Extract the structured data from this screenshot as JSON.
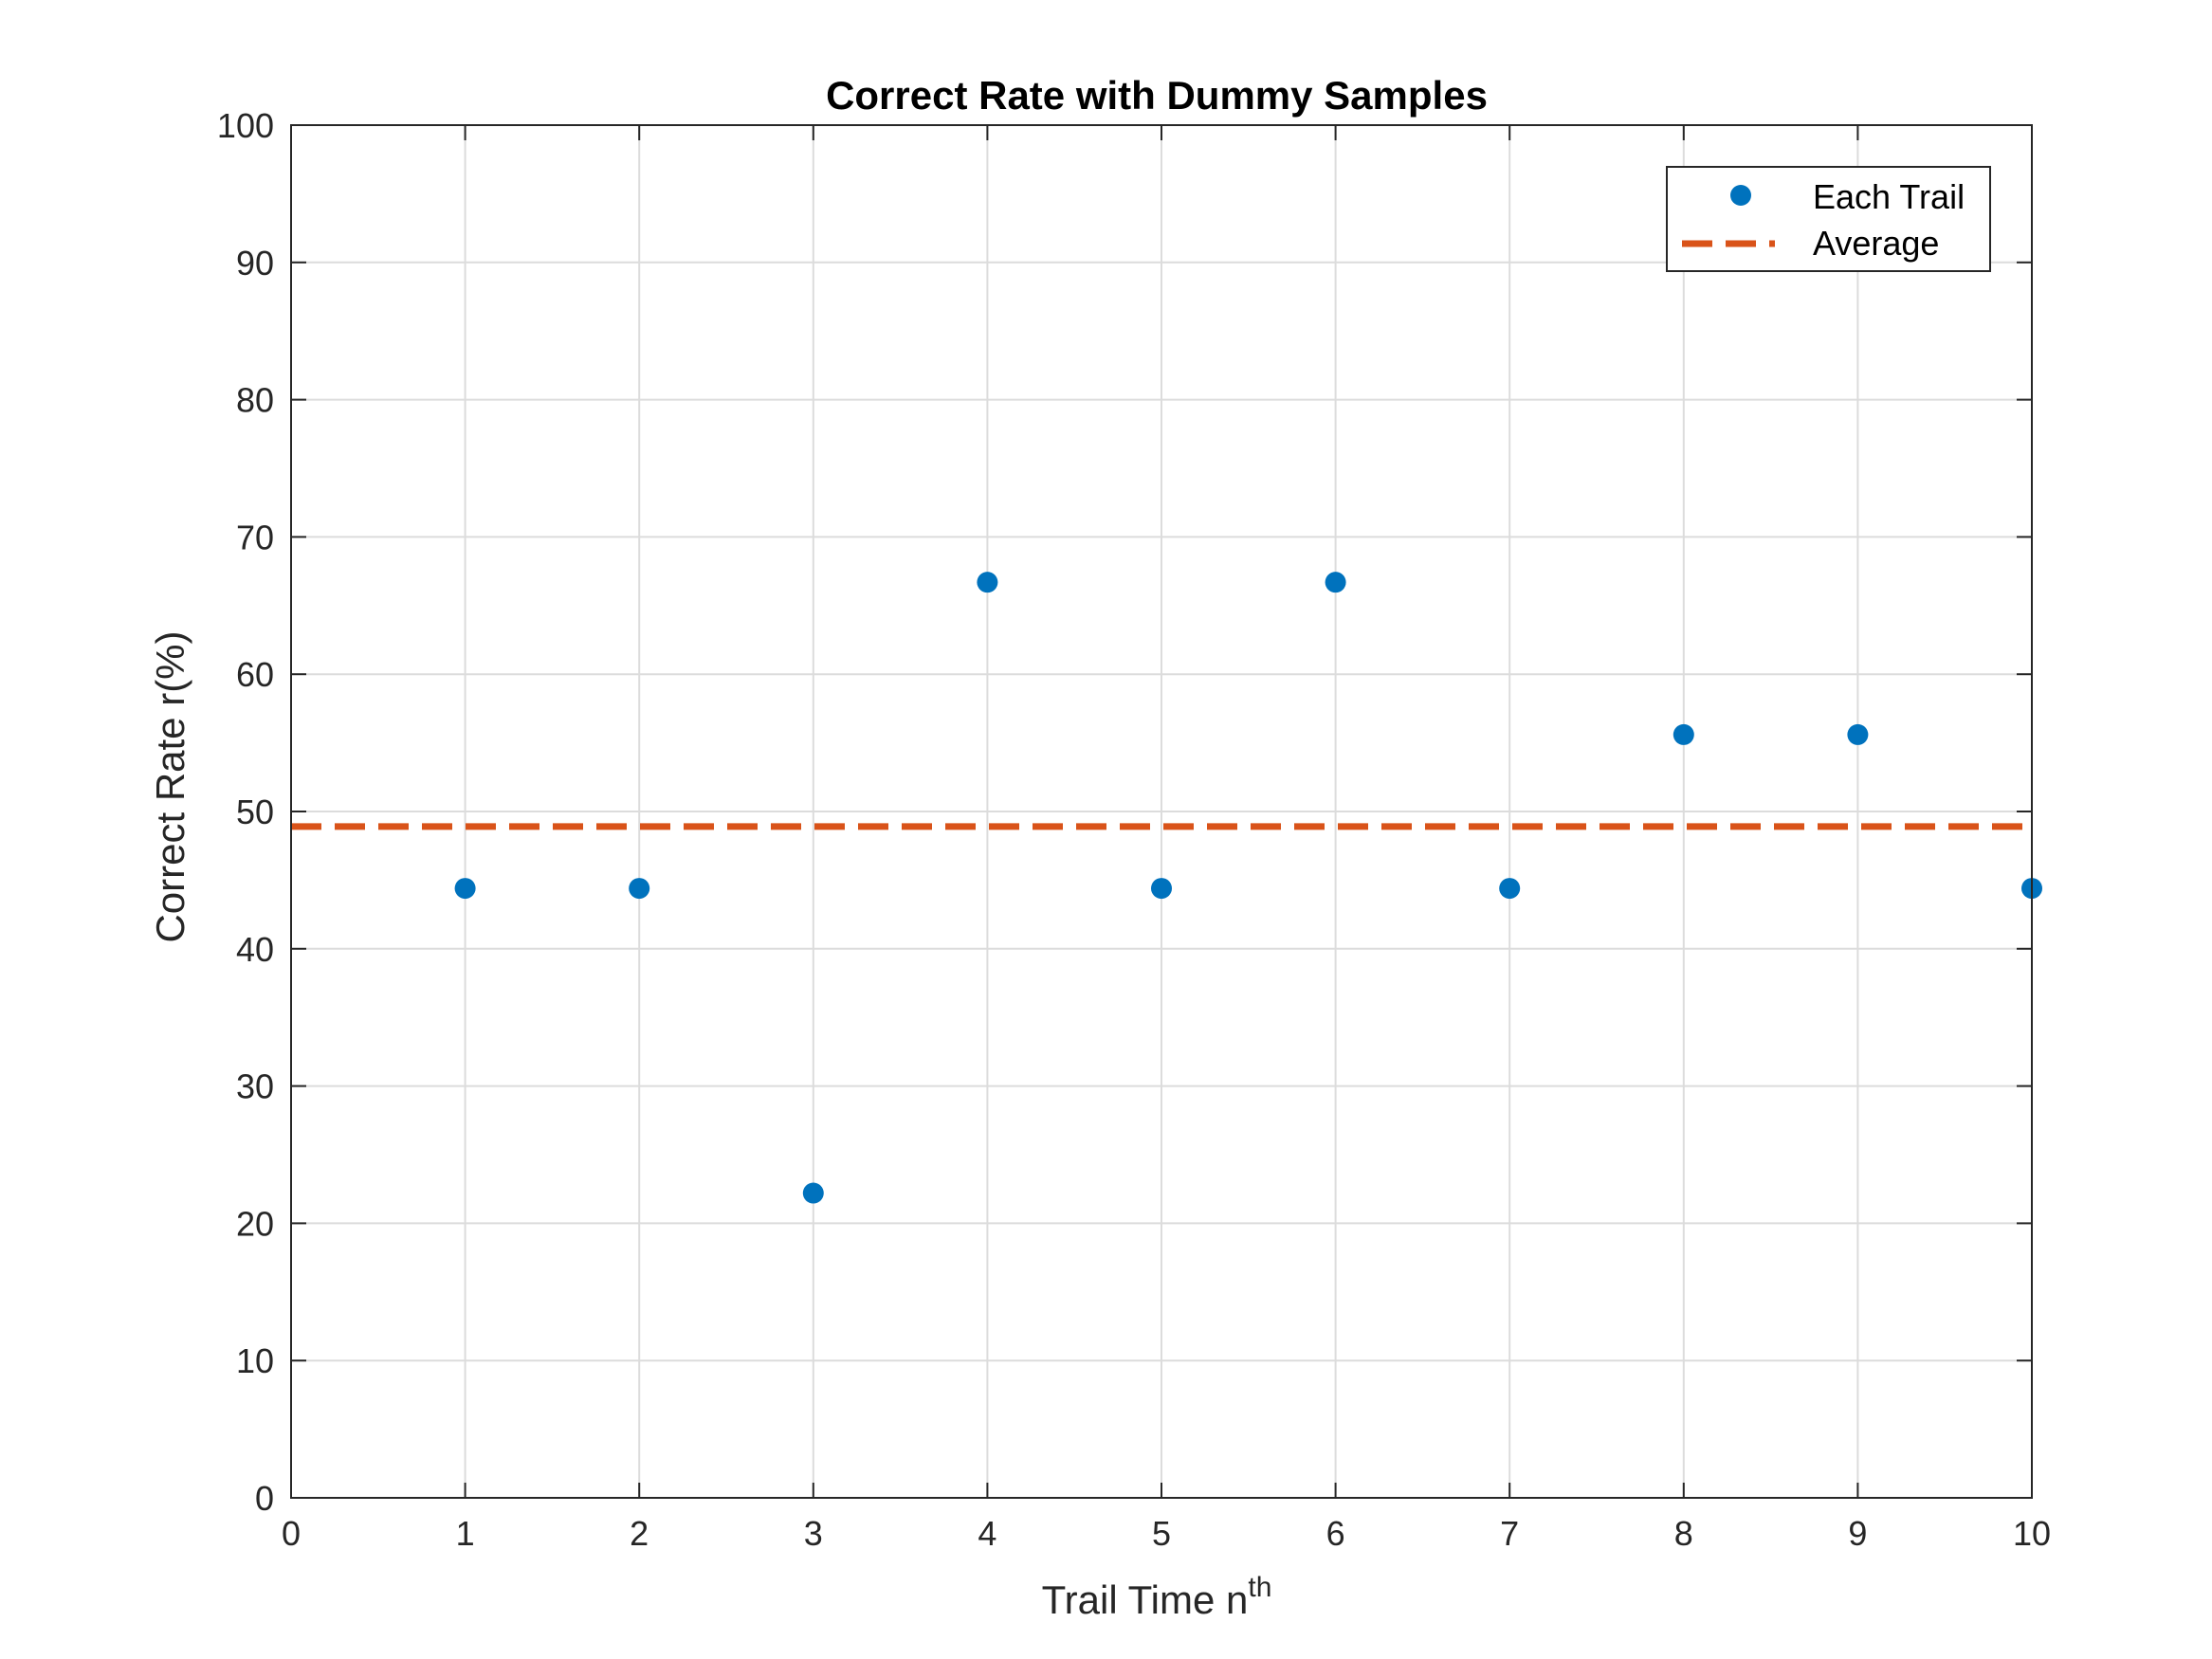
{
  "chart_data": {
    "type": "scatter",
    "title": "Correct Rate with Dummy Samples",
    "xlabel_main": "Trail Time n",
    "xlabel_sup": "th",
    "ylabel": "Correct Rate r(%)",
    "xlim": [
      0,
      10
    ],
    "ylim": [
      0,
      100
    ],
    "xticks": [
      0,
      1,
      2,
      3,
      4,
      5,
      6,
      7,
      8,
      9,
      10
    ],
    "yticks": [
      0,
      10,
      20,
      30,
      40,
      50,
      60,
      70,
      80,
      90,
      100
    ],
    "grid": true,
    "legend_position": "top-right",
    "series": [
      {
        "name": "Each Trail",
        "kind": "markers",
        "color": "#0072BD",
        "x": [
          1,
          2,
          3,
          4,
          5,
          6,
          7,
          8,
          9,
          10
        ],
        "y": [
          44.4,
          44.4,
          22.2,
          66.7,
          44.4,
          66.7,
          44.4,
          55.6,
          55.6,
          44.4
        ]
      },
      {
        "name": "Average",
        "kind": "dashed-line",
        "color": "#D95319",
        "x": [
          0,
          10
        ],
        "y": [
          48.9,
          48.9
        ]
      }
    ]
  }
}
